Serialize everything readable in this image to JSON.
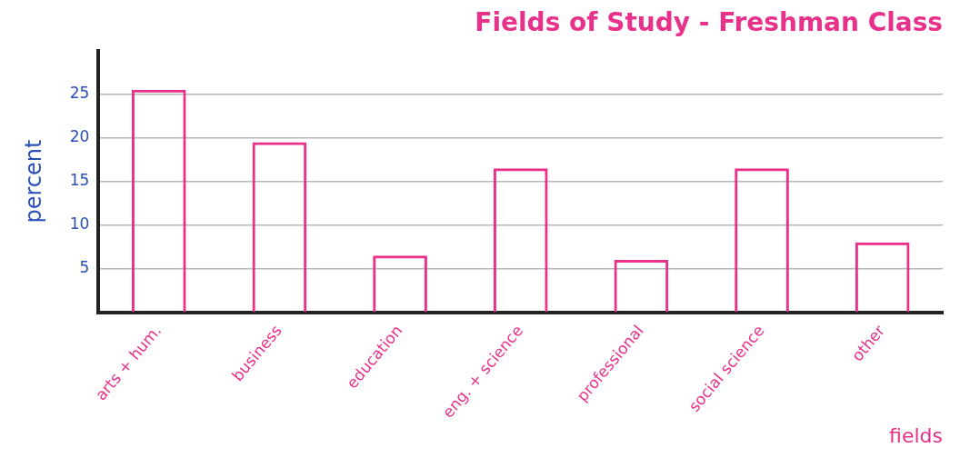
{
  "chart_data": {
    "type": "bar",
    "title": "Fields of Study - Freshman Class",
    "categories": [
      "arts + hum.",
      "business",
      "education",
      "eng. + science",
      "professional",
      "social science",
      "other"
    ],
    "values": [
      25.5,
      19.5,
      6.5,
      16.5,
      6,
      16.5,
      8
    ],
    "color": "#e8318a",
    "x_label": "fields",
    "y_label": "percent",
    "ylim": [
      0,
      30
    ],
    "yticks": [
      5,
      10,
      15,
      20,
      25
    ],
    "grid": true
  }
}
